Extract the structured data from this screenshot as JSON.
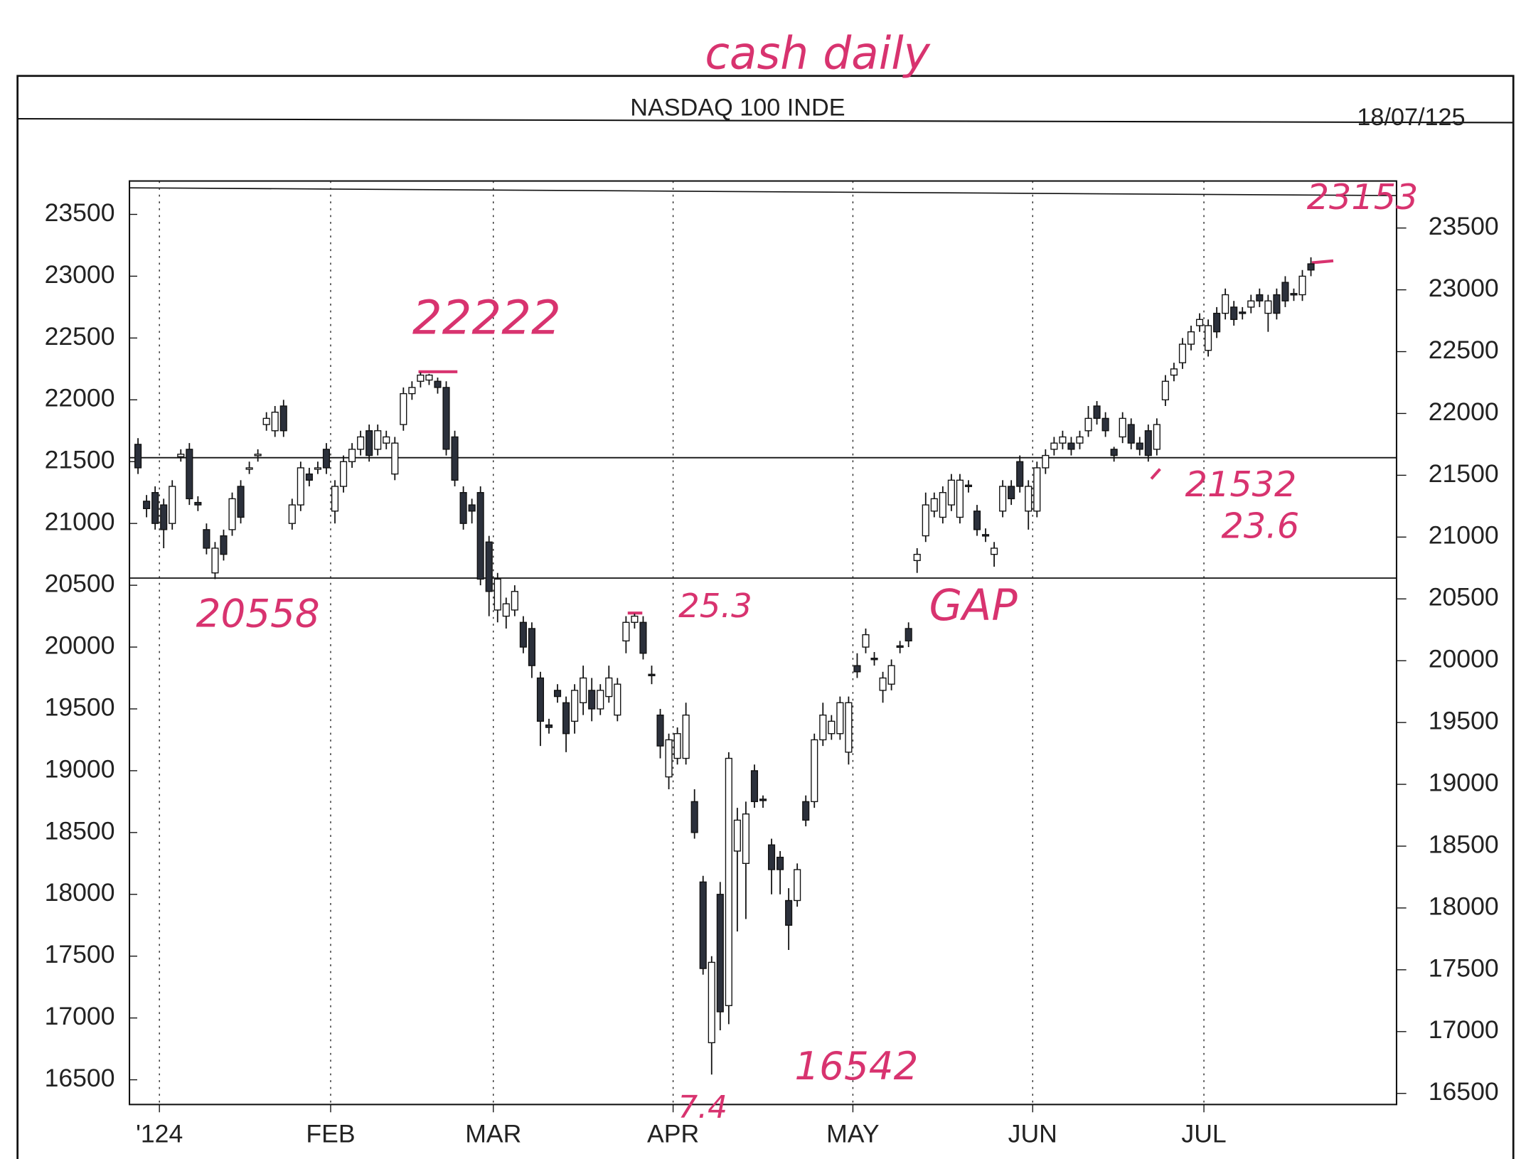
{
  "chart_data": {
    "type": "candlestick",
    "title": "NASDAQ 100 INDE",
    "date": "18/07/125",
    "open": [
      21640,
      21180,
      21250,
      21150,
      21000,
      21540,
      21600,
      21170,
      20950,
      20600,
      20900,
      20950,
      21300,
      21440,
      21550,
      21800,
      21750,
      21950,
      21000,
      21150,
      21400,
      21440,
      21600,
      21100,
      21300,
      21500,
      21600,
      21750,
      21600,
      21650,
      21400,
      21800,
      22050,
      22150,
      22160,
      22150,
      22100,
      21700,
      21250,
      21150,
      21250,
      20850,
      20300,
      20250,
      20300,
      20200,
      20150,
      19750,
      19370,
      19650,
      19550,
      19400,
      19550,
      19650,
      19500,
      19600,
      19450,
      20050,
      20200,
      20200,
      19780,
      19450,
      18950,
      19100,
      19100,
      18750,
      18100,
      16800,
      18000,
      17100,
      18350,
      18250,
      19000,
      18770,
      18400,
      18300,
      17950,
      17950,
      18750,
      18750,
      19250,
      19300,
      19300,
      19150,
      19850,
      20000,
      19910,
      19650,
      19700,
      20010,
      20150,
      20700,
      20900,
      21100,
      21050,
      21150,
      21050,
      21310,
      21100,
      20910,
      20750,
      21100,
      21300,
      21500,
      21100,
      21100,
      21450,
      21600,
      21650,
      21650,
      21650,
      21750,
      21950,
      21850,
      21600,
      21700,
      21800,
      21650,
      21750,
      21600,
      22000,
      22200,
      22300,
      22450,
      22600,
      22400,
      22700,
      22700,
      22750,
      22710,
      22750,
      22850,
      22700,
      22850,
      22950,
      22860,
      22850,
      23100
    ],
    "high": [
      21690,
      21230,
      21300,
      21200,
      21350,
      21600,
      21650,
      21220,
      21000,
      20850,
      20950,
      21250,
      21350,
      21500,
      21600,
      21900,
      21950,
      22000,
      21200,
      21500,
      21450,
      21500,
      21650,
      21350,
      21550,
      21650,
      21750,
      21800,
      21800,
      21750,
      21700,
      22100,
      22150,
      22222,
      22210,
      22180,
      22150,
      21750,
      21300,
      21200,
      21300,
      20900,
      20600,
      20400,
      20500,
      20250,
      20200,
      19800,
      19420,
      19700,
      19600,
      19700,
      19850,
      19750,
      19700,
      19850,
      19750,
      20250,
      20270,
      20250,
      19850,
      19500,
      19300,
      19350,
      19550,
      18850,
      18150,
      17500,
      18100,
      19150,
      18700,
      18750,
      19050,
      18800,
      18450,
      18350,
      18050,
      18250,
      18800,
      19300,
      19550,
      19450,
      19600,
      19600,
      19950,
      20150,
      19960,
      19800,
      19900,
      20050,
      20200,
      20800,
      21250,
      21250,
      21300,
      21400,
      21400,
      21350,
      21150,
      20960,
      20850,
      21350,
      21350,
      21550,
      21350,
      21500,
      21600,
      21700,
      21750,
      21700,
      21750,
      21950,
      21990,
      21900,
      21620,
      21900,
      21850,
      21700,
      21800,
      21850,
      22200,
      22300,
      22500,
      22600,
      22700,
      22650,
      22750,
      22900,
      22800,
      22750,
      22850,
      22900,
      22850,
      22900,
      23000,
      22900,
      23050,
      23153
    ],
    "low": [
      21400,
      21050,
      20950,
      20800,
      20950,
      21500,
      21150,
      21100,
      20750,
      20550,
      20700,
      20900,
      21000,
      21400,
      21500,
      21750,
      21700,
      21700,
      20950,
      21100,
      21300,
      21400,
      21400,
      21000,
      21250,
      21450,
      21550,
      21500,
      21550,
      21600,
      21350,
      21750,
      22000,
      22100,
      22120,
      22050,
      21550,
      21300,
      20950,
      21000,
      20500,
      20250,
      20200,
      20150,
      20250,
      19950,
      19750,
      19200,
      19300,
      19550,
      19150,
      19300,
      19450,
      19400,
      19450,
      19550,
      19400,
      19950,
      20150,
      19900,
      19700,
      19100,
      18850,
      19050,
      19050,
      18450,
      17350,
      16542,
      16900,
      16950,
      17700,
      17800,
      18700,
      18700,
      18000,
      18000,
      17550,
      17900,
      18550,
      18700,
      19200,
      19250,
      19250,
      19050,
      19750,
      19950,
      19850,
      19550,
      19650,
      19950,
      20000,
      20600,
      20850,
      21050,
      21000,
      21100,
      21000,
      21250,
      20900,
      20850,
      20650,
      21050,
      21150,
      21250,
      20950,
      21050,
      21400,
      21550,
      21600,
      21550,
      21600,
      21700,
      21800,
      21700,
      21500,
      21650,
      21600,
      21550,
      21500,
      21550,
      21950,
      22150,
      22250,
      22400,
      22550,
      22350,
      22500,
      22650,
      22600,
      22650,
      22700,
      22750,
      22550,
      22650,
      22750,
      22800,
      22800,
      23000
    ],
    "close": [
      21450,
      21120,
      21000,
      20950,
      21300,
      21560,
      21200,
      21150,
      20800,
      20800,
      20750,
      21200,
      21050,
      21450,
      21560,
      21850,
      21900,
      21750,
      21150,
      21450,
      21350,
      21450,
      21450,
      21300,
      21500,
      21600,
      21700,
      21550,
      21750,
      21700,
      21650,
      22050,
      22100,
      22200,
      22200,
      22100,
      21600,
      21350,
      21000,
      21100,
      20550,
      20450,
      20550,
      20350,
      20450,
      20000,
      19850,
      19400,
      19350,
      19600,
      19300,
      19650,
      19750,
      19500,
      19650,
      19750,
      19700,
      20200,
      20250,
      19950,
      19770,
      19200,
      19250,
      19300,
      19450,
      18500,
      17400,
      17450,
      17050,
      19100,
      18600,
      18650,
      18750,
      18760,
      18200,
      18200,
      17750,
      18200,
      18600,
      19250,
      19450,
      19400,
      19550,
      19550,
      19800,
      20100,
      19900,
      19750,
      19850,
      20000,
      20050,
      20750,
      21150,
      21200,
      21250,
      21350,
      21350,
      21300,
      20950,
      20900,
      20800,
      21300,
      21200,
      21300,
      21300,
      21450,
      21550,
      21650,
      21700,
      21600,
      21700,
      21850,
      21850,
      21750,
      21550,
      21850,
      21650,
      21600,
      21550,
      21800,
      22150,
      22250,
      22450,
      22550,
      22650,
      22600,
      22550,
      22850,
      22650,
      22700,
      22800,
      22800,
      22800,
      22700,
      22800,
      22850,
      23000,
      23050
    ],
    "xlim": [
      -1,
      147
    ],
    "xticks": [
      {
        "value": 2.5,
        "label": "'124"
      },
      {
        "value": 22.5,
        "label": "FEB"
      },
      {
        "value": 41.5,
        "label": "MAR"
      },
      {
        "value": 62.5,
        "label": "APR"
      },
      {
        "value": 83.5,
        "label": "MAY"
      },
      {
        "value": 104.5,
        "label": "JUN"
      },
      {
        "value": 124.5,
        "label": "JUL"
      }
    ],
    "ylim": [
      16300,
      23770
    ],
    "yticks": [
      16500,
      17000,
      17500,
      18000,
      18500,
      19000,
      19500,
      20000,
      20500,
      21000,
      21500,
      22000,
      22500,
      23000,
      23500
    ],
    "levels": [
      21532,
      20558
    ],
    "handwritten": [
      "cash daily",
      "22222",
      "20558",
      "25.3",
      "GAP",
      "21532",
      "23.6",
      "23153",
      "16542",
      "7.4"
    ],
    "up_color": "#ffffff",
    "down_color": "#2b303b",
    "ink_color": "#d8336f"
  }
}
